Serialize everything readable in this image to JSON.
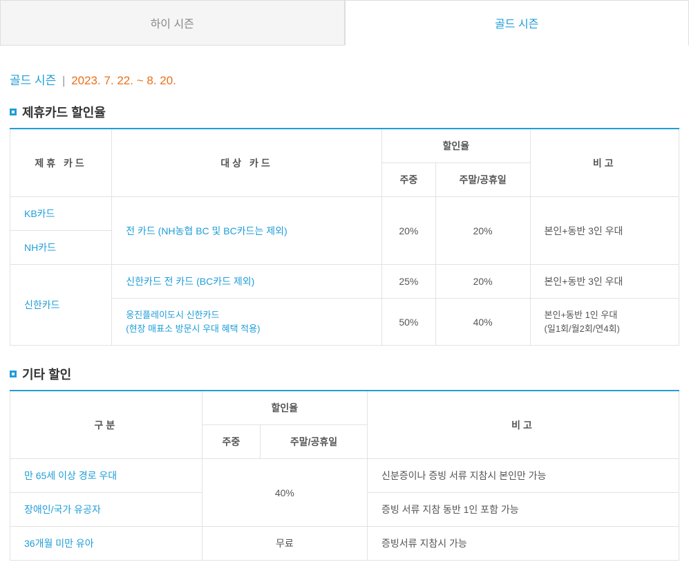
{
  "tabs": {
    "inactive": "하이 시즌",
    "active": "골드 시즌"
  },
  "season": {
    "name": "골드 시즌",
    "sep": "|",
    "date": "2023. 7. 22. ~ 8. 20."
  },
  "section1": {
    "title": "제휴카드 할인율",
    "headers": {
      "card": "제휴 카드",
      "target": "대상 카드",
      "discount": "할인율",
      "weekday": "주중",
      "weekend": "주말/공휴일",
      "note": "비고"
    },
    "rows": {
      "kb": "KB카드",
      "nh": "NH카드",
      "kb_target": "전 카드 (NH농협 BC 및 BC카드는 제외)",
      "kb_wd": "20%",
      "kb_we": "20%",
      "kb_note": "본인+동반 3인 우대",
      "sh": "신한카드",
      "sh_t1": "신한카드 전 카드 (BC카드 제외)",
      "sh_t1_wd": "25%",
      "sh_t1_we": "20%",
      "sh_t1_note": "본인+동반 3인 우대",
      "sh_t2a": "웅진플레이도시 신한카드",
      "sh_t2b": "(현장 매표소 방문시 우대 혜택 적용)",
      "sh_t2_wd": "50%",
      "sh_t2_we": "40%",
      "sh_t2_note_a": "본인+동반 1인 우대",
      "sh_t2_note_b": "(일1회/월2회/연4회)"
    }
  },
  "section2": {
    "title": "기타 할인",
    "headers": {
      "cat": "구분",
      "discount": "할인율",
      "weekday": "주중",
      "weekend": "주말/공휴일",
      "note": "비고"
    },
    "rows": {
      "r1": "만 65세 이상 경로 우대",
      "r1_note": "신분증이나 증빙 서류 지참시 본인만 가능",
      "r2": "장애인/국가 유공자",
      "r2_note": "증빙 서류 지참 동반 1인 포함 가능",
      "r12_disc": "40%",
      "r3": "36개월 미만 유아",
      "r3_disc": "무료",
      "r3_note": "증빙서류 지참시 가능"
    }
  }
}
